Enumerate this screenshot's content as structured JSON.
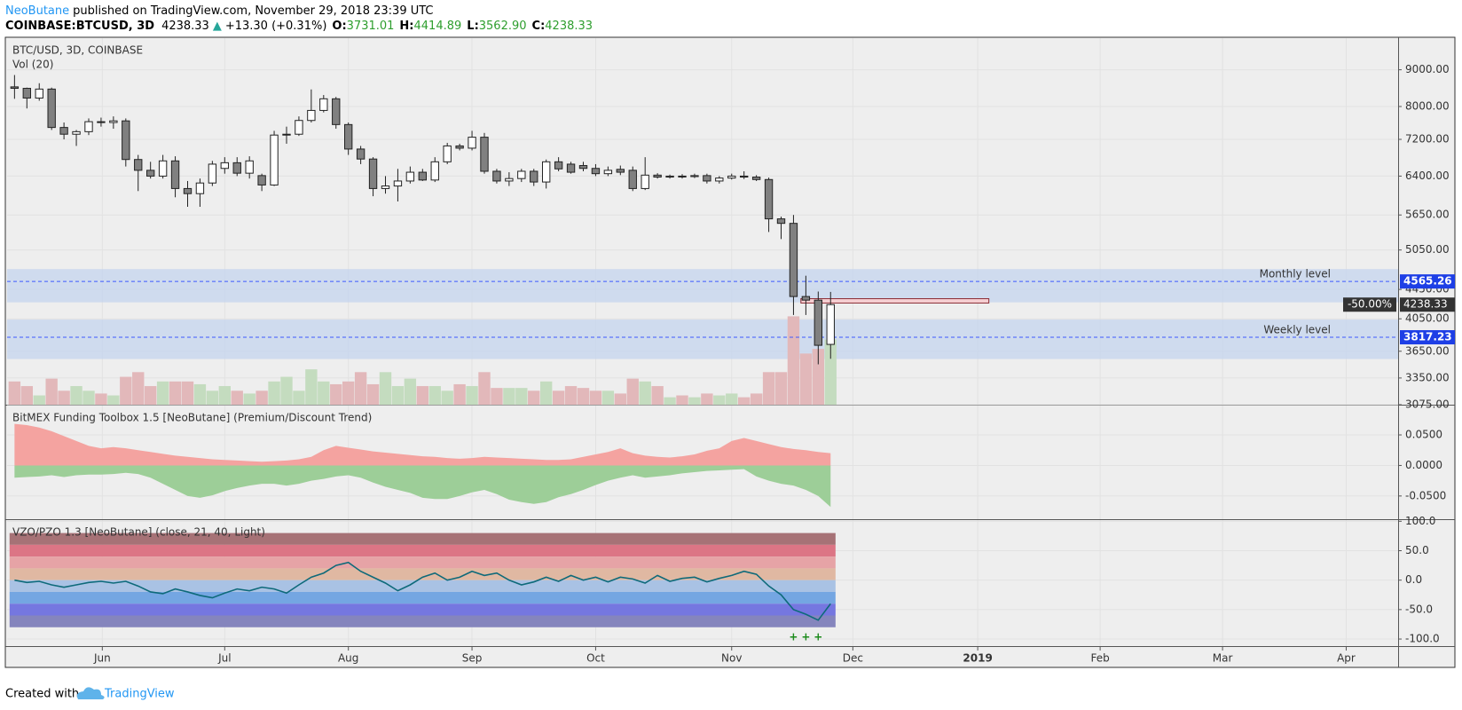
{
  "header": {
    "author": "NeoButane",
    "published": "published on TradingView.com, November 29, 2018 23:39 UTC",
    "symbol": "COINBASE:BTCUSD, 3D",
    "last": "4238.33",
    "arrow": "▲",
    "change": "+13.30 (+0.31%)",
    "ohlc": [
      {
        "label": "O:",
        "value": "3731.01"
      },
      {
        "label": "H:",
        "value": "4414.89"
      },
      {
        "label": "L:",
        "value": "3562.90"
      },
      {
        "label": "C:",
        "value": "4238.33"
      }
    ]
  },
  "footer": {
    "created": "Created with",
    "brand": "TradingView"
  },
  "chart_data": [
    {
      "type": "candlestick",
      "title": "BTC/USD, 3D, COINBASE",
      "subtitle": "Vol (20)",
      "log": true,
      "grid": true,
      "ylim": [
        3075,
        9960
      ],
      "yticks": [
        {
          "value": 9000,
          "label": "9000.00"
        },
        {
          "value": 8000,
          "label": "8000.00"
        },
        {
          "value": 7200,
          "label": "7200.00"
        },
        {
          "value": 6400,
          "label": "6400.00"
        },
        {
          "value": 5650,
          "label": "5650.00"
        },
        {
          "value": 5050,
          "label": "5050.00"
        },
        {
          "value": 4450,
          "label": "4450.00"
        },
        {
          "value": 4050,
          "label": "4050.00"
        },
        {
          "value": 3650,
          "label": "3650.00"
        },
        {
          "value": 3350,
          "label": "3350.00"
        },
        {
          "value": 3075,
          "label": "3075.00"
        }
      ],
      "open": [
        8520,
        8480,
        8220,
        8460,
        7480,
        7320,
        7380,
        7620,
        7600,
        7640,
        6750,
        6520,
        6400,
        6720,
        6150,
        6050,
        6260,
        6560,
        6680,
        6460,
        6410,
        6220,
        7300,
        7320,
        7650,
        7900,
        8200,
        7550,
        6980,
        6760,
        6150,
        6200,
        6300,
        6480,
        6320,
        6700,
        7050,
        7000,
        7250,
        6500,
        6300,
        6350,
        6500,
        6280,
        6700,
        6650,
        6620,
        6560,
        6450,
        6540,
        6520,
        6150,
        6420,
        6380,
        6400,
        6390,
        6410,
        6300,
        6360,
        6400,
        6380,
        6330,
        5580,
        5500,
        4350,
        4300,
        3731.01
      ],
      "high": [
        8850,
        8500,
        8620,
        8500,
        7600,
        7420,
        7700,
        7720,
        7750,
        7700,
        6850,
        6700,
        6850,
        6820,
        6300,
        6350,
        6720,
        6800,
        6800,
        6820,
        6450,
        7400,
        7500,
        7750,
        8450,
        8300,
        8250,
        7600,
        7050,
        6800,
        6400,
        6550,
        6600,
        6550,
        6800,
        7120,
        7100,
        7400,
        7350,
        6550,
        6480,
        6550,
        6550,
        6750,
        6800,
        6700,
        6700,
        6650,
        6600,
        6620,
        6600,
        6800,
        6460,
        6430,
        6440,
        6450,
        6450,
        6400,
        6450,
        6500,
        6420,
        6370,
        5620,
        5650,
        4650,
        4420,
        4414.89
      ],
      "low": [
        8200,
        7950,
        8150,
        7420,
        7200,
        7050,
        7300,
        7500,
        7450,
        6600,
        6100,
        6350,
        6350,
        5980,
        5800,
        5800,
        6200,
        6450,
        6400,
        6350,
        6100,
        6200,
        7100,
        7280,
        7600,
        7850,
        7450,
        6850,
        6650,
        6000,
        6050,
        5900,
        6250,
        6300,
        6280,
        6650,
        6950,
        6950,
        6450,
        6250,
        6200,
        6280,
        6200,
        6150,
        6500,
        6450,
        6500,
        6400,
        6400,
        6420,
        6100,
        6120,
        6350,
        6350,
        6350,
        6360,
        6250,
        6250,
        6330,
        6340,
        6300,
        5350,
        5230,
        4100,
        4100,
        3500,
        3562.9
      ],
      "close": [
        8480,
        8220,
        8460,
        7480,
        7320,
        7380,
        7620,
        7600,
        7640,
        6750,
        6520,
        6400,
        6720,
        6150,
        6050,
        6260,
        6650,
        6680,
        6460,
        6720,
        6220,
        7300,
        7320,
        7650,
        7900,
        8200,
        7550,
        6980,
        6760,
        6150,
        6200,
        6300,
        6480,
        6320,
        6700,
        7050,
        7000,
        7250,
        6500,
        6300,
        6350,
        6500,
        6280,
        6700,
        6550,
        6480,
        6560,
        6450,
        6520,
        6480,
        6150,
        6420,
        6380,
        6400,
        6390,
        6410,
        6300,
        6360,
        6400,
        6380,
        6330,
        5580,
        5500,
        4350,
        4300,
        3720,
        4238.33
      ],
      "volume": [
        25,
        20,
        10,
        28,
        15,
        20,
        15,
        12,
        10,
        30,
        35,
        20,
        25,
        25,
        25,
        22,
        15,
        20,
        15,
        12,
        15,
        25,
        30,
        15,
        38,
        25,
        22,
        25,
        35,
        22,
        35,
        20,
        28,
        20,
        20,
        15,
        22,
        20,
        35,
        18,
        18,
        18,
        15,
        25,
        15,
        20,
        18,
        15,
        15,
        12,
        28,
        25,
        20,
        8,
        10,
        8,
        12,
        10,
        12,
        8,
        12,
        35,
        35,
        95,
        55,
        60,
        70
      ],
      "colors": {
        "down": "#808080",
        "up": "#ffffff",
        "vol_down": "#e2b8ba",
        "vol_up": "#c4dcbf",
        "level": "#3d5afe",
        "band": "#c7d6ee"
      },
      "levels": [
        {
          "text": "Monthly level",
          "value": 4565.26,
          "band": [
            4270,
            4750
          ]
        },
        {
          "text": "Weekly level",
          "value": 3817.23,
          "band": [
            3560,
            4040
          ]
        }
      ],
      "box": {
        "x": [
          63.6,
          78.8
        ],
        "y": [
          4260,
          4320
        ],
        "label": "-50.00%",
        "color": "#f6cfd2"
      }
    },
    {
      "type": "area",
      "title": "BitMEX Funding Toolbox 1.5 [NeoButane] (Premium/Discount Trend)",
      "grid": true,
      "ylim": [
        -0.088,
        0.098
      ],
      "yticks": [
        {
          "value": 0.05,
          "label": "0.0500"
        },
        {
          "value": 0,
          "label": "0.0000"
        },
        {
          "value": -0.05,
          "label": "-0.0500"
        }
      ],
      "series": [
        {
          "color": "#f4a3a0",
          "values": [
            0.068,
            0.066,
            0.062,
            0.056,
            0.048,
            0.04,
            0.032,
            0.028,
            0.03,
            0.028,
            0.025,
            0.022,
            0.019,
            0.016,
            0.014,
            0.012,
            0.01,
            0.009,
            0.008,
            0.007,
            0.006,
            0.007,
            0.008,
            0.01,
            0.014,
            0.025,
            0.032,
            0.029,
            0.026,
            0.023,
            0.021,
            0.019,
            0.017,
            0.015,
            0.014,
            0.012,
            0.011,
            0.012,
            0.014,
            0.013,
            0.012,
            0.011,
            0.01,
            0.009,
            0.009,
            0.01,
            0.014,
            0.018,
            0.022,
            0.028,
            0.02,
            0.016,
            0.014,
            0.013,
            0.015,
            0.018,
            0.024,
            0.028,
            0.04,
            0.045,
            0.04,
            0.035,
            0.03,
            0.027,
            0.025,
            0.022,
            0.02
          ]
        },
        {
          "color": "#9dce98",
          "values": [
            -0.02,
            -0.019,
            -0.018,
            -0.016,
            -0.019,
            -0.016,
            -0.015,
            -0.015,
            -0.014,
            -0.012,
            -0.014,
            -0.02,
            -0.03,
            -0.04,
            -0.05,
            -0.053,
            -0.049,
            -0.042,
            -0.037,
            -0.033,
            -0.03,
            -0.03,
            -0.033,
            -0.03,
            -0.025,
            -0.022,
            -0.018,
            -0.016,
            -0.02,
            -0.028,
            -0.035,
            -0.04,
            -0.045,
            -0.053,
            -0.055,
            -0.055,
            -0.05,
            -0.044,
            -0.04,
            -0.047,
            -0.056,
            -0.06,
            -0.063,
            -0.06,
            -0.052,
            -0.047,
            -0.04,
            -0.032,
            -0.025,
            -0.02,
            -0.016,
            -0.02,
            -0.018,
            -0.016,
            -0.013,
            -0.011,
            -0.009,
            -0.008,
            -0.007,
            -0.006,
            -0.018,
            -0.025,
            -0.03,
            -0.033,
            -0.04,
            -0.05,
            -0.068
          ]
        }
      ]
    },
    {
      "type": "line",
      "title": "VZO/PZO 1.3 [NeoButane] (close, 21, 40, Light)",
      "grid": true,
      "ylim": [
        -112,
        102
      ],
      "yticks": [
        {
          "value": 100,
          "label": "100.0"
        },
        {
          "value": 50,
          "label": "50.0"
        },
        {
          "value": 0,
          "label": "0.0"
        },
        {
          "value": -50,
          "label": "-50.0"
        },
        {
          "value": -100,
          "label": "-100.0"
        }
      ],
      "xlim": [
        -0.6,
        111.9
      ],
      "xticks": [
        {
          "value": 7.1,
          "label": "Jun"
        },
        {
          "value": 17.0,
          "label": "Jul"
        },
        {
          "value": 27.0,
          "label": "Aug"
        },
        {
          "value": 37.0,
          "label": "Sep"
        },
        {
          "value": 47.0,
          "label": "Oct"
        },
        {
          "value": 58.0,
          "label": "Nov"
        },
        {
          "value": 67.8,
          "label": "Dec"
        },
        {
          "value": 77.9,
          "label": "2019"
        },
        {
          "value": 87.8,
          "label": "Feb"
        },
        {
          "value": 97.7,
          "label": "Mar"
        },
        {
          "value": 107.7,
          "label": "Apr"
        }
      ],
      "zones": [
        {
          "from": 60,
          "to": 80,
          "color": "#a67276"
        },
        {
          "from": 40,
          "to": 60,
          "color": "#dc7585"
        },
        {
          "from": 20,
          "to": 40,
          "color": "#e6a3a6"
        },
        {
          "from": 0,
          "to": 20,
          "color": "#e0b8a2"
        },
        {
          "from": -20,
          "to": 0,
          "color": "#a9c2e4"
        },
        {
          "from": -40,
          "to": -20,
          "color": "#74a6e2"
        },
        {
          "from": -60,
          "to": -40,
          "color": "#7577e0"
        },
        {
          "from": -80,
          "to": -60,
          "color": "#8585bd"
        }
      ],
      "series": [
        {
          "color": "#0e6a7a",
          "values": [
            0,
            -4,
            -2,
            -8,
            -12,
            -8,
            -4,
            -2,
            -5,
            -2,
            -10,
            -20,
            -23,
            -15,
            -20,
            -26,
            -30,
            -22,
            -15,
            -18,
            -12,
            -15,
            -22,
            -8,
            5,
            12,
            25,
            30,
            15,
            5,
            -5,
            -18,
            -8,
            5,
            12,
            0,
            5,
            15,
            8,
            12,
            0,
            -8,
            -3,
            5,
            -2,
            8,
            0,
            5,
            -3,
            5,
            2,
            -5,
            8,
            -2,
            3,
            5,
            -3,
            3,
            8,
            15,
            10,
            -10,
            -25,
            -50,
            -58,
            -68,
            -40
          ]
        }
      ],
      "signals": [
        {
          "x": 63,
          "label": "+"
        },
        {
          "x": 64,
          "label": "+"
        },
        {
          "x": 65,
          "label": "+"
        }
      ]
    }
  ]
}
